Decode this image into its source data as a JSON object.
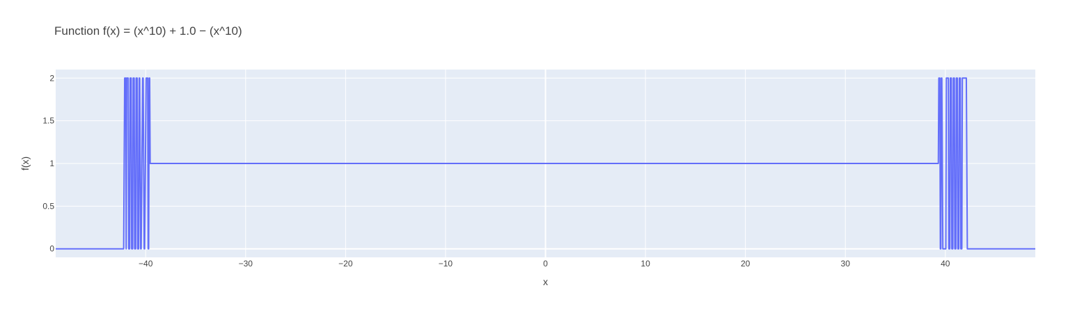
{
  "chart_data": {
    "type": "line",
    "title": "Function f(x) = (x^10) + 1.0 − (x^10)",
    "xlabel": "x",
    "ylabel": "f(x)",
    "xlim": [
      -49,
      49
    ],
    "ylim": [
      -0.1,
      2.1
    ],
    "xticks": [
      -40,
      -30,
      -20,
      -10,
      0,
      10,
      20,
      30,
      40
    ],
    "xtick_labels": [
      "−40",
      "−30",
      "−20",
      "−10",
      "0",
      "10",
      "20",
      "30",
      "40"
    ],
    "yticks": [
      0,
      0.5,
      1,
      1.5,
      2
    ],
    "ytick_labels": [
      "0",
      "0.5",
      "1",
      "1.5",
      "2"
    ],
    "grid": true,
    "colors": {
      "line": "#636efa",
      "plot_bg": "#e5ecf6",
      "grid": "#ffffff"
    },
    "series": [
      {
        "x": [
          -49,
          -42.2,
          -42.1,
          -42.0,
          -41.95,
          -41.9,
          -41.75,
          -41.7,
          -41.6,
          -41.55,
          -41.45,
          -41.4,
          -41.3,
          -41.25,
          -41.15,
          -41.1,
          -41.0,
          -40.95,
          -40.85,
          -40.8,
          -40.7,
          -40.65,
          -40.6,
          -40.5,
          -40.45,
          -40.3,
          -40.25,
          -40.15,
          -40.1,
          -39.95,
          -39.9,
          -39.8,
          -39.75,
          -39.7,
          -39.65,
          -39.6,
          -39.55,
          39.3,
          39.35,
          39.45,
          39.5,
          39.55,
          39.6,
          39.65,
          39.75,
          39.8,
          40.05,
          40.1,
          40.3,
          40.35,
          40.45,
          40.5,
          40.6,
          40.65,
          40.75,
          40.8,
          40.9,
          40.95,
          41.05,
          41.1,
          41.2,
          41.25,
          41.35,
          41.4,
          41.5,
          41.55,
          41.65,
          41.7,
          42.1,
          42.2,
          49
        ],
        "y": [
          0,
          0,
          2,
          2,
          0,
          2,
          2,
          0,
          0,
          2,
          2,
          0,
          0,
          2,
          2,
          0,
          0,
          2,
          2,
          0,
          0,
          2,
          2,
          0,
          0,
          2,
          2,
          0,
          0,
          2,
          2,
          2,
          0,
          0,
          2,
          2,
          1,
          1,
          2,
          2,
          0,
          0,
          2,
          2,
          0,
          0,
          0,
          2,
          2,
          0,
          0,
          2,
          2,
          0,
          0,
          2,
          2,
          0,
          0,
          2,
          2,
          0,
          0,
          2,
          2,
          0,
          0,
          2,
          2,
          0,
          0
        ]
      }
    ]
  }
}
